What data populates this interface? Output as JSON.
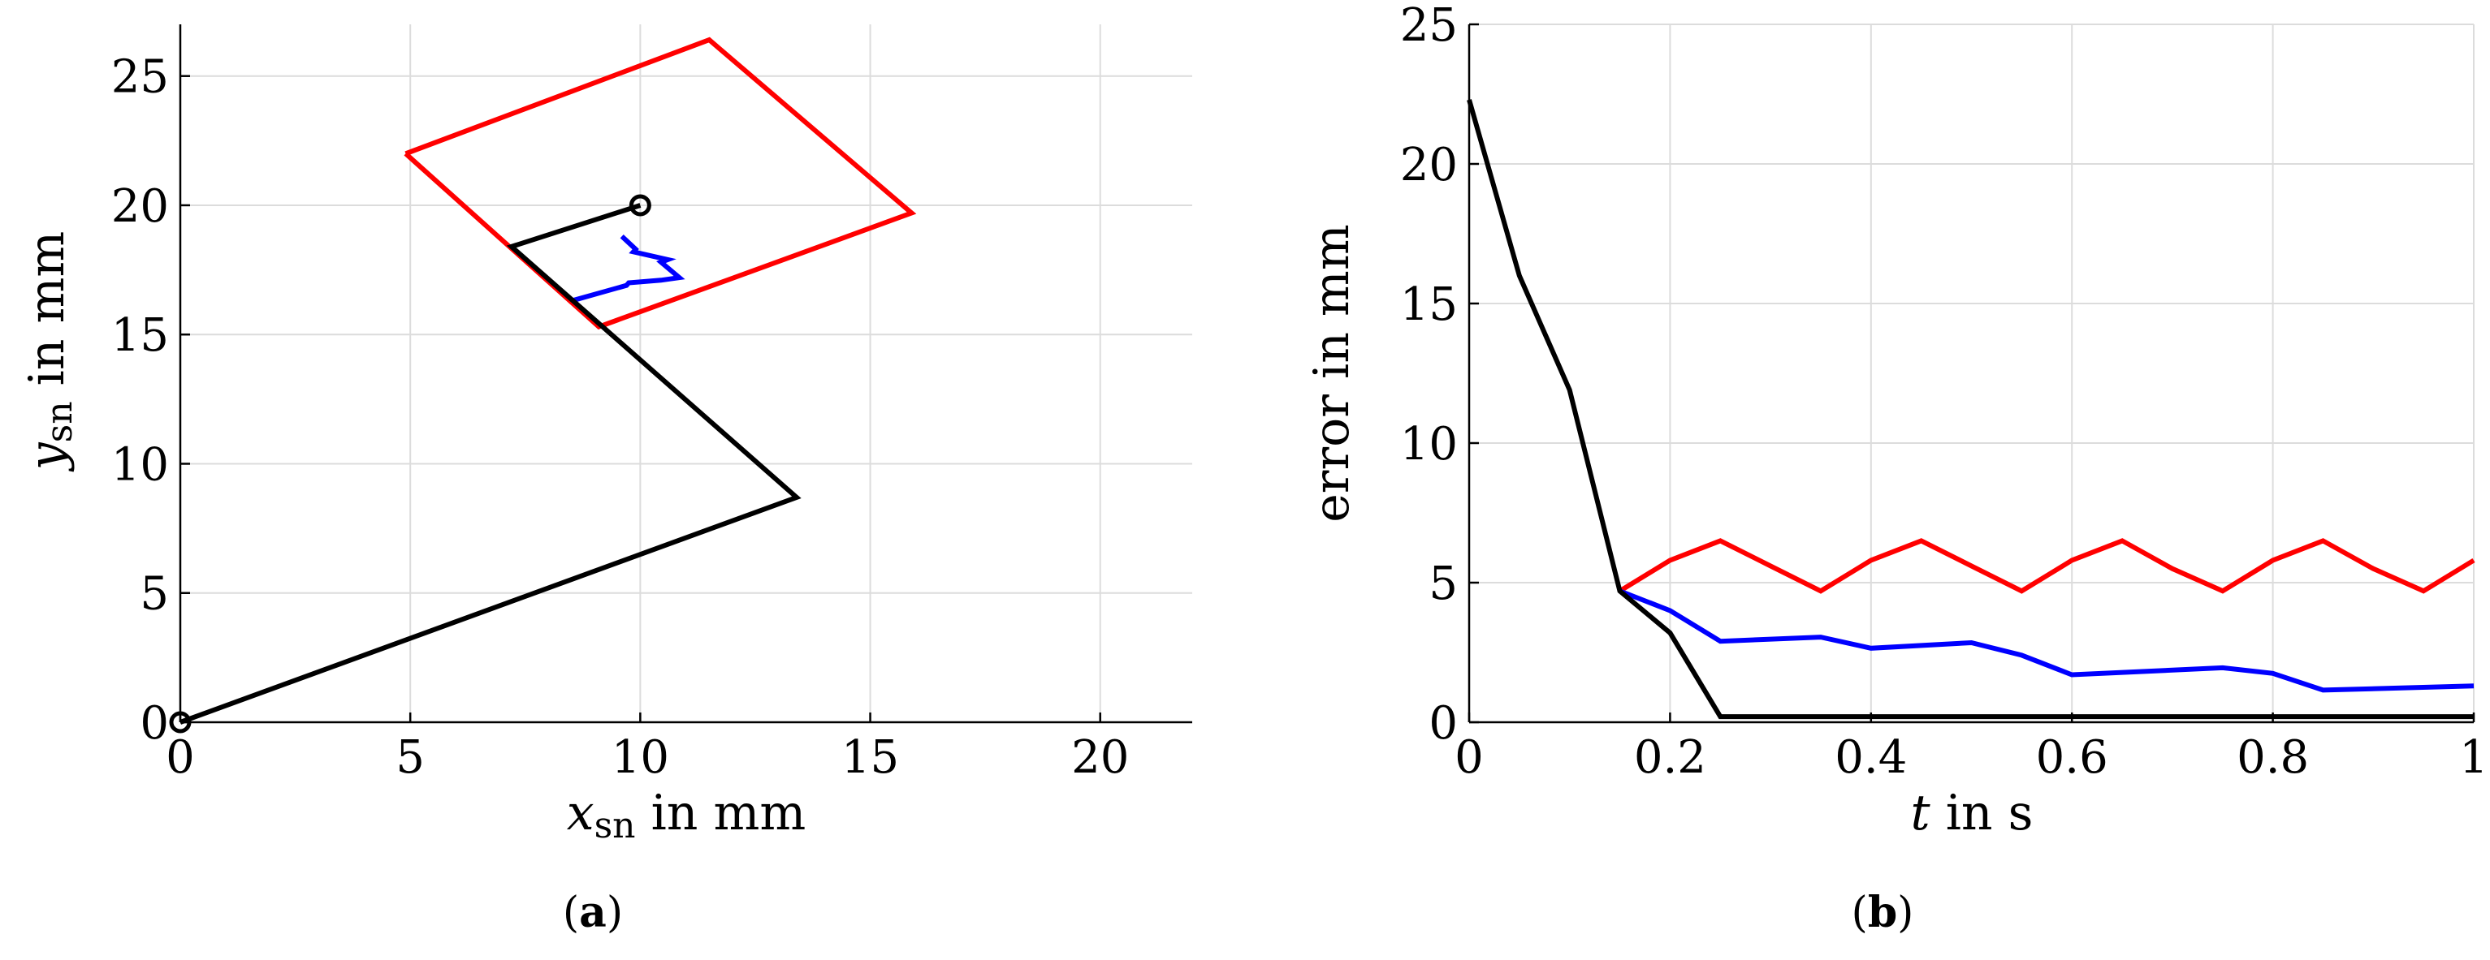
{
  "figure": {
    "panel_labels": [
      {
        "open": "(",
        "letter": "a",
        "close": ")"
      },
      {
        "open": "(",
        "letter": "b",
        "close": ")"
      }
    ]
  },
  "chart_data": [
    {
      "type": "line",
      "panel": "a",
      "xlabel": {
        "var": "x",
        "sub": "sn",
        "rest": " in mm"
      },
      "ylabel": {
        "var": "y",
        "sub": "sn",
        "rest": " in mm"
      },
      "xlim": [
        0,
        22
      ],
      "ylim": [
        0,
        27
      ],
      "xticks": [
        0,
        5,
        10,
        15,
        20
      ],
      "yticks": [
        0,
        5,
        10,
        15,
        20,
        25
      ],
      "grid": true,
      "colors": {
        "black": "#000000",
        "red": "#ff0000",
        "blue": "#0000ff"
      },
      "series": [
        {
          "color": "#ff0000",
          "x": [
            4.9,
            11.5,
            15.9,
            9.1,
            4.9
          ],
          "y": [
            22.0,
            26.4,
            19.7,
            15.3,
            22.0
          ]
        },
        {
          "color": "#0000ff",
          "x": [
            8.5,
            9.7,
            9.75,
            10.45,
            10.85,
            10.45,
            10.6,
            9.85,
            9.9,
            9.6
          ],
          "y": [
            16.3,
            16.9,
            17.0,
            17.1,
            17.2,
            17.8,
            17.9,
            18.2,
            18.3,
            18.8
          ]
        },
        {
          "color": "#000000",
          "x": [
            0,
            13.4,
            7.2,
            10.0
          ],
          "y": [
            0,
            8.7,
            18.4,
            20.0
          ]
        }
      ],
      "markers": [
        {
          "x": 0,
          "y": 0,
          "shape": "circle"
        },
        {
          "x": 10.0,
          "y": 20.0,
          "shape": "circle"
        }
      ]
    },
    {
      "type": "line",
      "panel": "b",
      "xlabel": {
        "var": "t",
        "sub": "",
        "rest": " in s"
      },
      "ylabel": {
        "var": "",
        "sub": "",
        "rest": "error in mm"
      },
      "xlim": [
        0,
        1
      ],
      "ylim": [
        0,
        25
      ],
      "xticks": [
        0,
        0.2,
        0.4,
        0.6,
        0.8,
        1
      ],
      "xtick_labels": [
        "0",
        "0.2",
        "0.4",
        "0.6",
        "0.8",
        "1"
      ],
      "yticks": [
        0,
        5,
        10,
        15,
        20,
        25
      ],
      "grid": true,
      "colors": {
        "black": "#000000",
        "red": "#ff0000",
        "blue": "#0000ff"
      },
      "series": [
        {
          "color": "#ff0000",
          "x": [
            0.15,
            0.2,
            0.25,
            0.3,
            0.35,
            0.4,
            0.45,
            0.5,
            0.55,
            0.6,
            0.65,
            0.7,
            0.75,
            0.8,
            0.85,
            0.9,
            0.95,
            1.0
          ],
          "y": [
            4.7,
            5.8,
            6.5,
            5.6,
            4.7,
            5.8,
            6.5,
            5.6,
            4.7,
            5.8,
            6.5,
            5.5,
            4.7,
            5.8,
            6.5,
            5.5,
            4.7,
            5.8
          ]
        },
        {
          "color": "#0000ff",
          "x": [
            0.15,
            0.2,
            0.25,
            0.35,
            0.4,
            0.5,
            0.55,
            0.6,
            0.75,
            0.8,
            0.85,
            1.0
          ],
          "y": [
            4.7,
            4.0,
            2.9,
            3.05,
            2.65,
            2.85,
            2.4,
            1.7,
            1.95,
            1.75,
            1.15,
            1.3
          ]
        },
        {
          "color": "#000000",
          "x": [
            0,
            0.05,
            0.1,
            0.15,
            0.2,
            0.25,
            1.0
          ],
          "y": [
            22.3,
            16.0,
            11.9,
            4.7,
            3.2,
            0.2,
            0.2
          ]
        }
      ],
      "markers": []
    }
  ]
}
